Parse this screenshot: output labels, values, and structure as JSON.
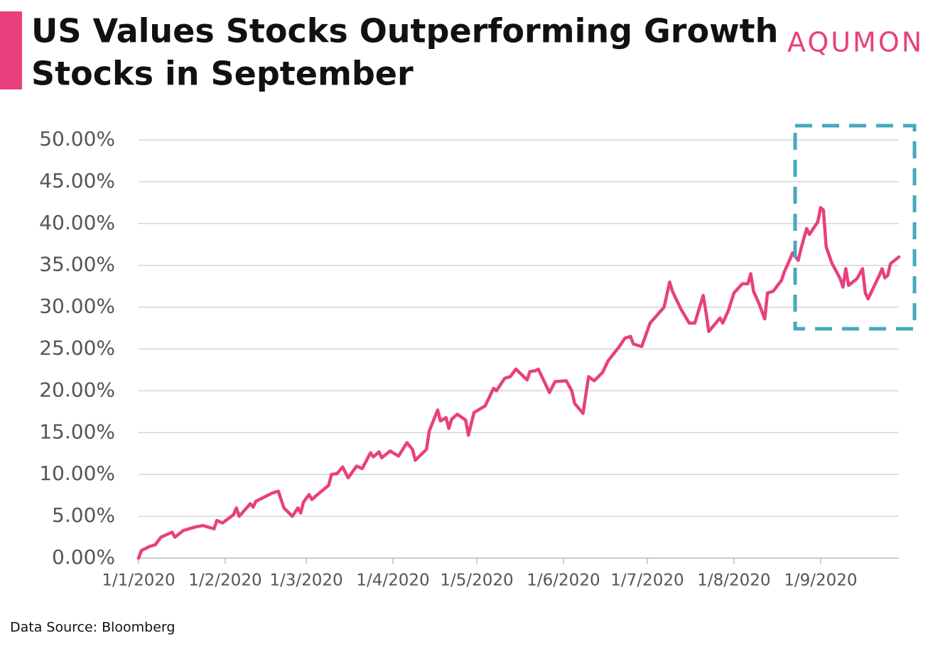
{
  "chart_data": {
    "type": "line",
    "title_lines": [
      "US Values Stocks Outperforming Growth",
      "Stocks in September"
    ],
    "brand": "AQUMON",
    "source": "Data Source: Bloomberg",
    "color": "#e8407f",
    "grid": true,
    "xlim": [
      "2020-01-01",
      "2020-09-29"
    ],
    "ylim": [
      0,
      50
    ],
    "xticks": [
      {
        "value": "2020-01-01",
        "label": "1/1/2020"
      },
      {
        "value": "2020-02-01",
        "label": "1/2/2020"
      },
      {
        "value": "2020-03-01",
        "label": "1/3/2020"
      },
      {
        "value": "2020-04-01",
        "label": "1/4/2020"
      },
      {
        "value": "2020-05-01",
        "label": "1/5/2020"
      },
      {
        "value": "2020-06-01",
        "label": "1/6/2020"
      },
      {
        "value": "2020-07-01",
        "label": "1/7/2020"
      },
      {
        "value": "2020-08-01",
        "label": "1/8/2020"
      },
      {
        "value": "2020-09-01",
        "label": "1/9/2020"
      }
    ],
    "yticks": [
      {
        "value": 0,
        "label": "0.00%"
      },
      {
        "value": 5,
        "label": "5.00%"
      },
      {
        "value": 10,
        "label": "10.00%"
      },
      {
        "value": 15,
        "label": "15.00%"
      },
      {
        "value": 20,
        "label": "20.00%"
      },
      {
        "value": 25,
        "label": "25.00%"
      },
      {
        "value": 30,
        "label": "30.00%"
      },
      {
        "value": 35,
        "label": "35.00%"
      },
      {
        "value": 40,
        "label": "40.00%"
      },
      {
        "value": 45,
        "label": "45.00%"
      },
      {
        "value": 50,
        "label": "50.00%"
      }
    ],
    "x": [
      "2020-01-01",
      "2020-01-02",
      "2020-01-05",
      "2020-01-07",
      "2020-01-09",
      "2020-01-13",
      "2020-01-14",
      "2020-01-17",
      "2020-01-21",
      "2020-01-24",
      "2020-01-28",
      "2020-01-29",
      "2020-01-31",
      "2020-02-04",
      "2020-02-05",
      "2020-02-06",
      "2020-02-10",
      "2020-02-11",
      "2020-02-12",
      "2020-02-18",
      "2020-02-20",
      "2020-02-22",
      "2020-02-25",
      "2020-02-27",
      "2020-02-28",
      "2020-02-29",
      "2020-03-02",
      "2020-03-03",
      "2020-03-05",
      "2020-03-09",
      "2020-03-10",
      "2020-03-12",
      "2020-03-14",
      "2020-03-16",
      "2020-03-19",
      "2020-03-21",
      "2020-03-24",
      "2020-03-25",
      "2020-03-27",
      "2020-03-28",
      "2020-03-31",
      "2020-04-03",
      "2020-04-06",
      "2020-04-08",
      "2020-04-09",
      "2020-04-13",
      "2020-04-14",
      "2020-04-17",
      "2020-04-18",
      "2020-04-20",
      "2020-04-21",
      "2020-04-22",
      "2020-04-24",
      "2020-04-27",
      "2020-04-28",
      "2020-04-30",
      "2020-05-04",
      "2020-05-07",
      "2020-05-08",
      "2020-05-11",
      "2020-05-13",
      "2020-05-15",
      "2020-05-19",
      "2020-05-20",
      "2020-05-22",
      "2020-05-23",
      "2020-05-27",
      "2020-05-29",
      "2020-06-02",
      "2020-06-04",
      "2020-06-05",
      "2020-06-08",
      "2020-06-10",
      "2020-06-12",
      "2020-06-15",
      "2020-06-17",
      "2020-06-21",
      "2020-06-23",
      "2020-06-25",
      "2020-06-26",
      "2020-06-29",
      "2020-07-02",
      "2020-07-07",
      "2020-07-09",
      "2020-07-10",
      "2020-07-13",
      "2020-07-16",
      "2020-07-18",
      "2020-07-21",
      "2020-07-22",
      "2020-07-23",
      "2020-07-27",
      "2020-07-28",
      "2020-07-30",
      "2020-08-01",
      "2020-08-04",
      "2020-08-06",
      "2020-08-07",
      "2020-08-08",
      "2020-08-10",
      "2020-08-12",
      "2020-08-13",
      "2020-08-15",
      "2020-08-18",
      "2020-08-19",
      "2020-08-21",
      "2020-08-22",
      "2020-08-24",
      "2020-08-25",
      "2020-08-27",
      "2020-08-28",
      "2020-08-31",
      "2020-09-01",
      "2020-09-02",
      "2020-09-03",
      "2020-09-05",
      "2020-09-08",
      "2020-09-09",
      "2020-09-10",
      "2020-09-11",
      "2020-09-14",
      "2020-09-16",
      "2020-09-17",
      "2020-09-18",
      "2020-09-22",
      "2020-09-23",
      "2020-09-24",
      "2020-09-25",
      "2020-09-26",
      "2020-09-29"
    ],
    "values": [
      0,
      0.9,
      1.4,
      1.6,
      2.5,
      3.1,
      2.5,
      3.3,
      3.7,
      3.9,
      3.5,
      4.5,
      4.2,
      5.2,
      6.0,
      5.0,
      6.5,
      6.1,
      6.8,
      7.8,
      8.0,
      6.0,
      5.0,
      6.0,
      5.4,
      6.7,
      7.6,
      7.0,
      7.6,
      8.7,
      10.0,
      10.1,
      10.9,
      9.6,
      11.0,
      10.7,
      12.6,
      12.1,
      12.7,
      12.0,
      12.8,
      12.2,
      13.8,
      13.0,
      11.7,
      13.0,
      15.2,
      17.7,
      16.4,
      16.8,
      15.5,
      16.6,
      17.2,
      16.5,
      14.7,
      17.4,
      18.2,
      20.3,
      20.0,
      21.5,
      21.7,
      22.6,
      21.3,
      22.3,
      22.4,
      22.6,
      19.8,
      21.1,
      21.2,
      20.0,
      18.5,
      17.3,
      21.7,
      21.2,
      22.2,
      23.6,
      25.3,
      26.3,
      26.5,
      25.6,
      25.3,
      28.1,
      30.0,
      33.0,
      31.9,
      29.8,
      28.1,
      28.1,
      31.4,
      29.4,
      27.1,
      28.7,
      28.1,
      29.6,
      31.7,
      32.8,
      32.8,
      34.0,
      31.9,
      30.4,
      28.6,
      31.7,
      31.9,
      33.2,
      34.2,
      35.7,
      36.5,
      35.6,
      37.0,
      39.4,
      38.7,
      40.2,
      41.9,
      41.6,
      37.2,
      35.3,
      33.4,
      32.4,
      34.6,
      32.6,
      33.4,
      34.6,
      31.7,
      31.0,
      33.8,
      34.6,
      33.5,
      33.8,
      35.2,
      36.0
    ]
  }
}
